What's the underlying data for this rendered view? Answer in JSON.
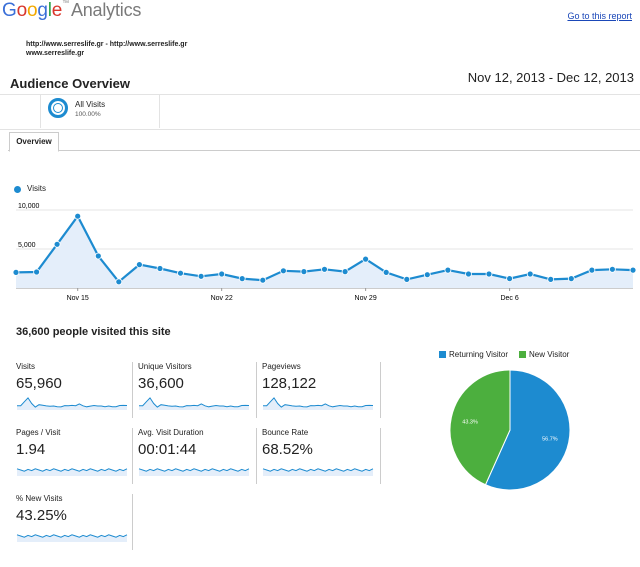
{
  "header": {
    "logo_text": "Google",
    "logo_suffix": "Analytics",
    "logo_tm": "™",
    "goto_link": "Go to this report",
    "url_line1": "http://www.serreslife.gr - http://www.serreslife.gr",
    "url_line2": "www.serreslife.gr",
    "report_title": "Audience Overview",
    "date_range": "Nov 12, 2013 - Dec 12, 2013"
  },
  "segment": {
    "name": "All Visits",
    "percent": "100.00%"
  },
  "tabs": [
    {
      "label": "Overview",
      "selected": true
    }
  ],
  "colors": {
    "accent": "#1d8bd0",
    "returning": "#1d8bd0",
    "new": "#4caf3e",
    "area_fill": "#e4eefa"
  },
  "chart_data": {
    "type": "area",
    "series": [
      {
        "name": "Visits",
        "values": [
          2000,
          2050,
          5600,
          9200,
          4100,
          800,
          3000,
          2500,
          1900,
          1500,
          1800,
          1200,
          1000,
          2200,
          2100,
          2400,
          2100,
          3700,
          2000,
          1100,
          1700,
          2300,
          1800,
          1800,
          1200,
          1800,
          1100,
          1200,
          2300,
          2400,
          2300
        ]
      }
    ],
    "x_labels": [
      {
        "index": 3,
        "label": "Nov 15"
      },
      {
        "index": 10,
        "label": "Nov 22"
      },
      {
        "index": 17,
        "label": "Nov 29"
      },
      {
        "index": 24,
        "label": "Dec 6"
      }
    ],
    "y_ticks": [
      {
        "value": 5000,
        "label": "5,000"
      },
      {
        "value": 10000,
        "label": "10,000"
      }
    ],
    "ylim": [
      0,
      10000
    ],
    "grid": true,
    "legend": "top-left"
  },
  "summary": "36,600 people visited this site",
  "metrics": [
    {
      "label": "Visits",
      "value": "65,960"
    },
    {
      "label": "Unique Visitors",
      "value": "36,600"
    },
    {
      "label": "Pageviews",
      "value": "128,122"
    },
    {
      "label": "Pages / Visit",
      "value": "1.94"
    },
    {
      "label": "Avg. Visit Duration",
      "value": "00:01:44"
    },
    {
      "label": "Bounce Rate",
      "value": "68.52%"
    },
    {
      "label": "% New Visits",
      "value": "43.25%"
    }
  ],
  "pie": {
    "type": "pie",
    "legend": [
      {
        "name": "Returning Visitor"
      },
      {
        "name": "New Visitor"
      }
    ],
    "slices": [
      {
        "name": "Returning Visitor",
        "value": 56.7,
        "label": "56.7%"
      },
      {
        "name": "New Visitor",
        "value": 43.3,
        "label": "43.3%"
      }
    ]
  }
}
